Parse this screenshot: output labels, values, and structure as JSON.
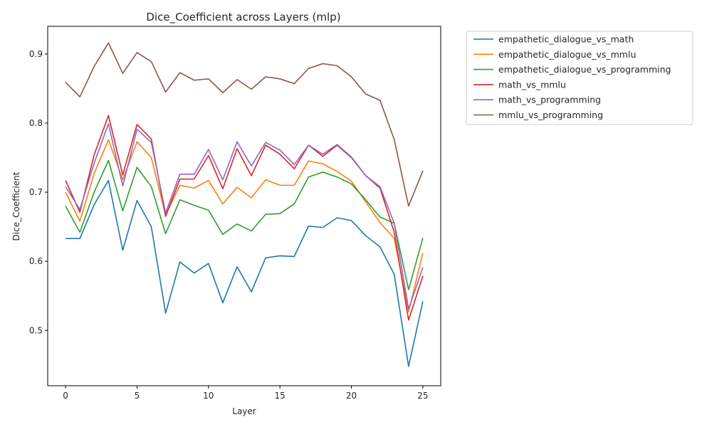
{
  "chart_data": {
    "type": "line",
    "title": "Dice_Coefficient across Layers (mlp)",
    "xlabel": "Layer",
    "ylabel": "Dice_Coefficient",
    "xlim": [
      -1.25,
      26.25
    ],
    "ylim": [
      0.42,
      0.94
    ],
    "xticks": [
      0,
      5,
      10,
      15,
      20,
      25
    ],
    "yticks": [
      0.5,
      0.6,
      0.7,
      0.8,
      0.9
    ],
    "ytick_labels": [
      "0.5",
      "0.6",
      "0.7",
      "0.8",
      "0.9"
    ],
    "grid": false,
    "legend": "outside-upper-right",
    "x": [
      0,
      1,
      2,
      3,
      4,
      5,
      6,
      7,
      8,
      9,
      10,
      11,
      12,
      13,
      14,
      15,
      16,
      17,
      18,
      19,
      20,
      21,
      22,
      23,
      24,
      25
    ],
    "series": [
      {
        "name": "empathetic_dialogue_vs_math",
        "color": "#1f77b4",
        "values": [
          0.633,
          0.633,
          0.682,
          0.717,
          0.616,
          0.688,
          0.65,
          0.525,
          0.599,
          0.583,
          0.597,
          0.54,
          0.592,
          0.556,
          0.605,
          0.608,
          0.607,
          0.651,
          0.649,
          0.663,
          0.659,
          0.637,
          0.621,
          0.581,
          0.448,
          0.542
        ]
      },
      {
        "name": "empathetic_dialogue_vs_mmlu",
        "color": "#ff7f0e",
        "values": [
          0.7,
          0.658,
          0.727,
          0.776,
          0.718,
          0.773,
          0.75,
          0.667,
          0.71,
          0.706,
          0.717,
          0.683,
          0.707,
          0.692,
          0.718,
          0.71,
          0.71,
          0.745,
          0.741,
          0.73,
          0.716,
          0.686,
          0.656,
          0.633,
          0.527,
          0.612
        ]
      },
      {
        "name": "empathetic_dialogue_vs_programming",
        "color": "#2ca02c",
        "values": [
          0.68,
          0.642,
          0.7,
          0.746,
          0.673,
          0.736,
          0.708,
          0.64,
          0.689,
          0.681,
          0.674,
          0.639,
          0.654,
          0.644,
          0.668,
          0.669,
          0.683,
          0.722,
          0.729,
          0.722,
          0.712,
          0.689,
          0.664,
          0.655,
          0.559,
          0.634
        ]
      },
      {
        "name": "math_vs_mmlu",
        "color": "#d62728",
        "values": [
          0.717,
          0.671,
          0.754,
          0.811,
          0.725,
          0.798,
          0.777,
          0.665,
          0.719,
          0.719,
          0.753,
          0.705,
          0.763,
          0.724,
          0.768,
          0.755,
          0.734,
          0.768,
          0.752,
          0.768,
          0.75,
          0.724,
          0.706,
          0.642,
          0.515,
          0.579
        ]
      },
      {
        "name": "math_vs_programming",
        "color": "#9467bd",
        "values": [
          0.708,
          0.675,
          0.742,
          0.799,
          0.709,
          0.791,
          0.772,
          0.67,
          0.726,
          0.726,
          0.762,
          0.718,
          0.773,
          0.738,
          0.772,
          0.761,
          0.74,
          0.768,
          0.755,
          0.769,
          0.751,
          0.724,
          0.708,
          0.655,
          0.531,
          0.591
        ]
      },
      {
        "name": "mmlu_vs_programming",
        "color": "#8c564b",
        "values": [
          0.859,
          0.838,
          0.882,
          0.916,
          0.872,
          0.902,
          0.889,
          0.845,
          0.873,
          0.862,
          0.864,
          0.844,
          0.863,
          0.849,
          0.867,
          0.864,
          0.857,
          0.879,
          0.886,
          0.883,
          0.867,
          0.842,
          0.833,
          0.776,
          0.68,
          0.731
        ]
      }
    ]
  }
}
